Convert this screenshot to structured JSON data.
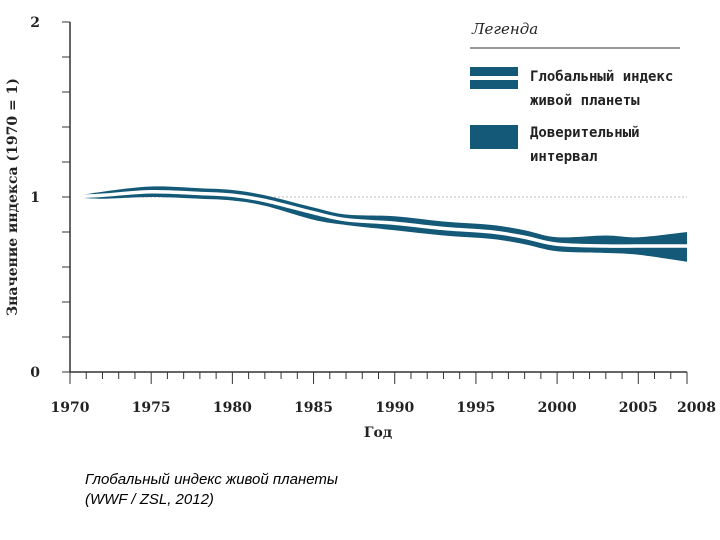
{
  "chart_data": {
    "type": "line",
    "title": "",
    "xlabel": "Год",
    "ylabel": "Значение индекса (1970 = 1)",
    "xlim": [
      1970,
      2008
    ],
    "ylim": [
      0,
      2
    ],
    "x_tick_labels": [
      "1970",
      "1975",
      "1980",
      "1985",
      "1990",
      "1995",
      "2000",
      "2005",
      "2008"
    ],
    "x_ticks": [
      1970,
      1975,
      1980,
      1985,
      1990,
      1995,
      2000,
      2005,
      2008
    ],
    "y_tick_labels": [
      "0",
      "1",
      "2"
    ],
    "y_ticks": [
      0,
      1,
      2
    ],
    "reference_line": 1,
    "legend": {
      "title": "Легенда",
      "position": "top-right",
      "items": [
        {
          "label_lines": [
            "Глобальный индекс",
            "живой планеты"
          ],
          "kind": "index-line"
        },
        {
          "label_lines": [
            "Доверительный",
            "интервал"
          ],
          "kind": "confidence-band"
        }
      ]
    },
    "series": [
      {
        "name": "Глобальный индекс живой планеты",
        "x": [
          1970,
          1972,
          1975,
          1978,
          1980,
          1982,
          1985,
          1987,
          1990,
          1993,
          1996,
          1998,
          2000,
          2003,
          2005,
          2008
        ],
        "values": [
          1.0,
          1.01,
          1.03,
          1.02,
          1.01,
          0.98,
          0.91,
          0.87,
          0.85,
          0.82,
          0.8,
          0.77,
          0.73,
          0.72,
          0.72,
          0.72
        ],
        "lower": [
          1.0,
          0.99,
          1.0,
          0.99,
          0.98,
          0.95,
          0.87,
          0.84,
          0.81,
          0.78,
          0.76,
          0.73,
          0.69,
          0.68,
          0.67,
          0.63
        ],
        "upper": [
          1.0,
          1.03,
          1.06,
          1.05,
          1.04,
          1.01,
          0.94,
          0.9,
          0.89,
          0.86,
          0.84,
          0.81,
          0.77,
          0.78,
          0.77,
          0.8
        ]
      }
    ],
    "colors": {
      "band": "#145a78",
      "index_line": "#ffffff",
      "reference": "#bbbbbb",
      "axis": "#333333"
    }
  },
  "caption": {
    "title": "Глобальный индекс живой планеты",
    "source": "(WWF / ZSL, 2012)"
  }
}
